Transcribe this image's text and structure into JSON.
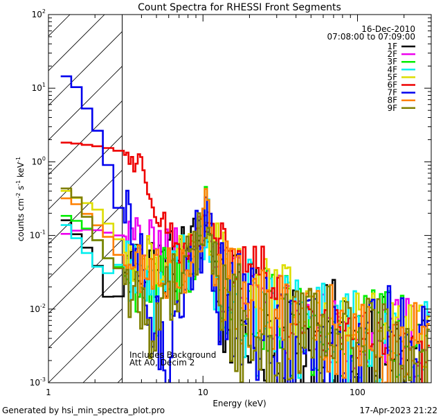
{
  "chart_data": {
    "type": "line",
    "title": "Count Spectra for RHESSI Front Segments",
    "xlabel": "Energy (keV)",
    "ylabel_parts": [
      "counts cm",
      "-2",
      " s",
      "-1",
      " keV",
      "-1"
    ],
    "xscale": "log",
    "yscale": "log",
    "xlim": [
      1.0,
      300.0
    ],
    "ylim": [
      0.001,
      100.0
    ],
    "x_ticks": [
      {
        "value": 1,
        "label": "1"
      },
      {
        "value": 10,
        "label": "10"
      },
      {
        "value": 100,
        "label": "100"
      }
    ],
    "y_ticks": [
      {
        "value": 0.001,
        "base": "10",
        "exp": "-3"
      },
      {
        "value": 0.01,
        "base": "10",
        "exp": "-2"
      },
      {
        "value": 0.1,
        "base": "10",
        "exp": "-1"
      },
      {
        "value": 1,
        "base": "10",
        "exp": "0"
      },
      {
        "value": 10,
        "base": "10",
        "exp": "1"
      },
      {
        "value": 100,
        "base": "10",
        "exp": "2"
      }
    ],
    "excluded_region": [
      1.0,
      3.0
    ],
    "date_label": "16-Dec-2010",
    "time_label": "07:08:00 to 07:09:00",
    "annotation_lines": [
      "Includes Background",
      "Att A0, Decim 2"
    ],
    "series": [
      {
        "name": "1F",
        "color": "#000000",
        "points": [
          [
            1.2,
            0.2
          ],
          [
            1.6,
            0.09
          ],
          [
            2,
            0.05
          ],
          [
            2.4,
            0.015
          ],
          [
            2.8,
            0.012
          ],
          [
            3,
            0.03
          ],
          [
            4,
            0.04
          ],
          [
            5,
            0.04
          ],
          [
            6,
            0.04
          ],
          [
            7,
            0.05
          ],
          [
            8,
            0.06
          ],
          [
            9,
            0.07
          ],
          [
            10,
            0.15
          ],
          [
            10.5,
            0.2
          ],
          [
            11,
            0.1
          ],
          [
            12,
            0.03
          ],
          [
            13,
            0.012
          ],
          [
            14,
            0.01
          ],
          [
            16,
            0.009
          ],
          [
            18,
            0.008
          ],
          [
            20,
            0.007
          ],
          [
            25,
            0.006
          ],
          [
            30,
            0.005
          ],
          [
            40,
            0.004
          ],
          [
            50,
            0.003
          ],
          [
            70,
            0.004
          ],
          [
            100,
            0.0035
          ],
          [
            150,
            0.003
          ],
          [
            200,
            0.0025
          ],
          [
            280,
            0.0015
          ]
        ],
        "noise": 0.5
      },
      {
        "name": "2F",
        "color": "#ee00ee",
        "points": [
          [
            1.2,
            0.1
          ],
          [
            1.6,
            0.12
          ],
          [
            2,
            0.12
          ],
          [
            2.4,
            0.11
          ],
          [
            2.8,
            0.1
          ],
          [
            3,
            0.1
          ],
          [
            4,
            0.08
          ],
          [
            5,
            0.07
          ],
          [
            6,
            0.06
          ],
          [
            7,
            0.06
          ],
          [
            8,
            0.065
          ],
          [
            9,
            0.06
          ],
          [
            10,
            0.12
          ],
          [
            10.5,
            0.17
          ],
          [
            11,
            0.1
          ],
          [
            12,
            0.04
          ],
          [
            14,
            0.025
          ],
          [
            16,
            0.02
          ],
          [
            18,
            0.018
          ],
          [
            20,
            0.015
          ],
          [
            25,
            0.012
          ],
          [
            30,
            0.01
          ],
          [
            40,
            0.008
          ],
          [
            50,
            0.007
          ],
          [
            70,
            0.006
          ],
          [
            100,
            0.005
          ],
          [
            150,
            0.0045
          ],
          [
            200,
            0.004
          ],
          [
            280,
            0.003
          ]
        ],
        "noise": 0.35
      },
      {
        "name": "3F",
        "color": "#00ee00",
        "points": [
          [
            1.2,
            0.2
          ],
          [
            1.6,
            0.15
          ],
          [
            2,
            0.1
          ],
          [
            2.4,
            0.05
          ],
          [
            2.8,
            0.04
          ],
          [
            3,
            0.03
          ],
          [
            4,
            0.02
          ],
          [
            5,
            0.02
          ],
          [
            6,
            0.03
          ],
          [
            7,
            0.03
          ],
          [
            8,
            0.04
          ],
          [
            9,
            0.06
          ],
          [
            10,
            0.15
          ],
          [
            10.5,
            0.25
          ],
          [
            11,
            0.1
          ],
          [
            12,
            0.03
          ],
          [
            14,
            0.015
          ],
          [
            16,
            0.012
          ],
          [
            18,
            0.01
          ],
          [
            20,
            0.009
          ],
          [
            25,
            0.007
          ],
          [
            30,
            0.006
          ],
          [
            40,
            0.005
          ],
          [
            50,
            0.004
          ],
          [
            70,
            0.005
          ],
          [
            100,
            0.004
          ],
          [
            150,
            0.0035
          ],
          [
            200,
            0.003
          ],
          [
            280,
            0.002
          ]
        ],
        "noise": 0.45
      },
      {
        "name": "4F",
        "color": "#00eeee",
        "points": [
          [
            1.2,
            0.17
          ],
          [
            1.6,
            0.08
          ],
          [
            2,
            0.04
          ],
          [
            2.4,
            0.03
          ],
          [
            2.8,
            0.04
          ],
          [
            3,
            0.04
          ],
          [
            4,
            0.03
          ],
          [
            5,
            0.008
          ],
          [
            6,
            0.02
          ],
          [
            7,
            0.03
          ],
          [
            8,
            0.04
          ],
          [
            9,
            0.06
          ],
          [
            10,
            0.14
          ],
          [
            10.5,
            0.2
          ],
          [
            11,
            0.1
          ],
          [
            12,
            0.03
          ],
          [
            14,
            0.012
          ],
          [
            16,
            0.01
          ],
          [
            18,
            0.008
          ],
          [
            20,
            0.008
          ],
          [
            25,
            0.006
          ],
          [
            30,
            0.005
          ],
          [
            40,
            0.0045
          ],
          [
            50,
            0.004
          ],
          [
            70,
            0.004
          ],
          [
            100,
            0.0035
          ],
          [
            150,
            0.003
          ],
          [
            200,
            0.0025
          ],
          [
            280,
            0.002
          ]
        ],
        "noise": 0.5
      },
      {
        "name": "5F",
        "color": "#dddd00",
        "points": [
          [
            1.2,
            0.45
          ],
          [
            1.6,
            0.3
          ],
          [
            2,
            0.25
          ],
          [
            2.4,
            0.15
          ],
          [
            2.8,
            0.1
          ],
          [
            3,
            0.06
          ],
          [
            4,
            0.05
          ],
          [
            5,
            0.04
          ],
          [
            6,
            0.045
          ],
          [
            7,
            0.045
          ],
          [
            8,
            0.05
          ],
          [
            9,
            0.07
          ],
          [
            10,
            0.15
          ],
          [
            10.5,
            0.22
          ],
          [
            11,
            0.12
          ],
          [
            12,
            0.05
          ],
          [
            14,
            0.03
          ],
          [
            16,
            0.025
          ],
          [
            18,
            0.02
          ],
          [
            20,
            0.018
          ],
          [
            25,
            0.015
          ],
          [
            30,
            0.012
          ],
          [
            40,
            0.01
          ],
          [
            50,
            0.008
          ],
          [
            70,
            0.007
          ],
          [
            100,
            0.006
          ],
          [
            150,
            0.005
          ],
          [
            200,
            0.004
          ],
          [
            280,
            0.003
          ]
        ],
        "noise": 0.35
      },
      {
        "name": "6F",
        "color": "#ee0000",
        "points": [
          [
            1.2,
            1.85
          ],
          [
            1.6,
            1.75
          ],
          [
            2,
            1.65
          ],
          [
            2.4,
            1.55
          ],
          [
            2.8,
            1.45
          ],
          [
            3,
            1.3
          ],
          [
            3.5,
            1.1
          ],
          [
            4,
            0.8
          ],
          [
            4.5,
            0.5
          ],
          [
            5,
            0.25
          ],
          [
            5.5,
            0.15
          ],
          [
            6,
            0.12
          ],
          [
            6.5,
            0.085
          ],
          [
            7,
            0.07
          ],
          [
            7.5,
            0.065
          ],
          [
            8,
            0.06
          ],
          [
            8.5,
            0.065
          ],
          [
            9,
            0.08
          ],
          [
            9.5,
            0.1
          ],
          [
            10,
            0.13
          ],
          [
            11,
            0.09
          ],
          [
            12,
            0.085
          ],
          [
            12.5,
            0.11
          ],
          [
            13.5,
            0.1
          ],
          [
            14.5,
            0.065
          ],
          [
            16,
            0.03
          ],
          [
            17,
            0.03
          ],
          [
            19,
            0.035
          ],
          [
            20,
            0.038
          ],
          [
            22,
            0.042
          ],
          [
            24,
            0.04
          ],
          [
            26,
            0.032
          ],
          [
            28,
            0.022
          ],
          [
            30,
            0.013
          ],
          [
            33,
            0.01
          ],
          [
            40,
            0.008
          ],
          [
            50,
            0.006
          ],
          [
            70,
            0.005
          ],
          [
            100,
            0.0045
          ],
          [
            150,
            0.0035
          ],
          [
            200,
            0.0025
          ],
          [
            280,
            0.0018
          ]
        ],
        "noise": 0.22
      },
      {
        "name": "7F",
        "color": "#0000ee",
        "points": [
          [
            1.2,
            15
          ],
          [
            1.4,
            14
          ],
          [
            1.6,
            8.5
          ],
          [
            1.8,
            5
          ],
          [
            2,
            3.2
          ],
          [
            2.2,
            2
          ],
          [
            2.4,
            1
          ],
          [
            2.6,
            0.55
          ],
          [
            2.8,
            0.25
          ],
          [
            3,
            0.2
          ],
          [
            3.5,
            0.07
          ],
          [
            4,
            0.03
          ],
          [
            4.5,
            0.01
          ],
          [
            5,
            0.005
          ],
          [
            5.5,
            0.002
          ],
          [
            5.8,
            0.001
          ],
          [
            6,
            0.002
          ],
          [
            6.5,
            0.01
          ],
          [
            7,
            0.02
          ],
          [
            8,
            0.03
          ],
          [
            9,
            0.06
          ],
          [
            10,
            0.12
          ],
          [
            10.5,
            0.18
          ],
          [
            11,
            0.1
          ],
          [
            12,
            0.03
          ],
          [
            14,
            0.012
          ],
          [
            16,
            0.01
          ],
          [
            18,
            0.008
          ],
          [
            20,
            0.006
          ],
          [
            25,
            0.005
          ],
          [
            30,
            0.004
          ],
          [
            40,
            0.0035
          ],
          [
            50,
            0.003
          ],
          [
            70,
            0.0035
          ],
          [
            100,
            0.003
          ],
          [
            150,
            0.0028
          ],
          [
            200,
            0.0025
          ],
          [
            280,
            0.0018
          ]
        ],
        "noise": 0.55
      },
      {
        "name": "8F",
        "color": "#ff8000",
        "points": [
          [
            1.2,
            0.35
          ],
          [
            1.6,
            0.25
          ],
          [
            2,
            0.15
          ],
          [
            2.4,
            0.1
          ],
          [
            2.8,
            0.06
          ],
          [
            3,
            0.04
          ],
          [
            4,
            0.035
          ],
          [
            5,
            0.03
          ],
          [
            6,
            0.035
          ],
          [
            7,
            0.035
          ],
          [
            8,
            0.045
          ],
          [
            9,
            0.06
          ],
          [
            10,
            0.13
          ],
          [
            10.5,
            0.18
          ],
          [
            11,
            0.1
          ],
          [
            12,
            0.04
          ],
          [
            14,
            0.02
          ],
          [
            16,
            0.015
          ],
          [
            18,
            0.012
          ],
          [
            20,
            0.01
          ],
          [
            25,
            0.008
          ],
          [
            30,
            0.007
          ],
          [
            40,
            0.006
          ],
          [
            50,
            0.005
          ],
          [
            70,
            0.005
          ],
          [
            100,
            0.0045
          ],
          [
            150,
            0.004
          ],
          [
            200,
            0.0035
          ],
          [
            280,
            0.0025
          ]
        ],
        "noise": 0.4
      },
      {
        "name": "9F",
        "color": "#7f7f00",
        "points": [
          [
            1.2,
            0.5
          ],
          [
            1.6,
            0.3
          ],
          [
            2,
            0.1
          ],
          [
            2.4,
            0.05
          ],
          [
            2.8,
            0.04
          ],
          [
            3,
            0.025
          ],
          [
            4,
            0.01
          ],
          [
            5,
            0.005
          ],
          [
            6,
            0.02
          ],
          [
            7,
            0.03
          ],
          [
            8,
            0.04
          ],
          [
            9,
            0.06
          ],
          [
            10,
            0.13
          ],
          [
            10.5,
            0.18
          ],
          [
            11,
            0.1
          ],
          [
            12,
            0.03
          ],
          [
            14,
            0.01
          ],
          [
            16,
            0.008
          ],
          [
            18,
            0.006
          ],
          [
            20,
            0.005
          ],
          [
            25,
            0.004
          ],
          [
            30,
            0.004
          ],
          [
            40,
            0.0035
          ],
          [
            50,
            0.003
          ],
          [
            70,
            0.0035
          ],
          [
            100,
            0.003
          ],
          [
            150,
            0.0028
          ],
          [
            200,
            0.0025
          ],
          [
            280,
            0.0018
          ]
        ],
        "noise": 0.5
      }
    ]
  },
  "footer": {
    "generated_by": "Generated by hsi_min_spectra_plot.pro",
    "timestamp": "17-Apr-2023 21:22"
  }
}
